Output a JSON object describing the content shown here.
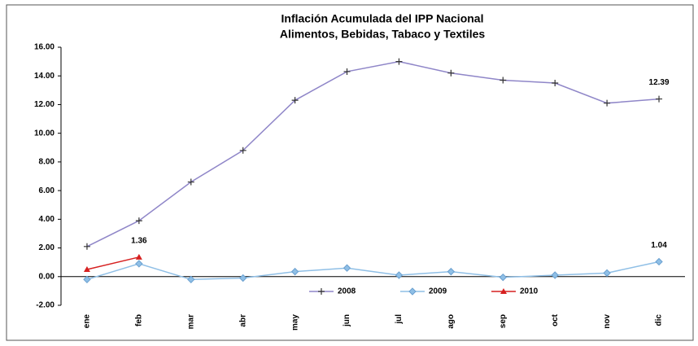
{
  "chart_data": {
    "type": "line",
    "title": "Inflación Acumulada del IPP Nacional",
    "subtitle": "Alimentos, Bebidas, Tabaco y Textiles",
    "categories": [
      "ene",
      "feb",
      "mar",
      "abr",
      "may",
      "jun",
      "jul",
      "ago",
      "sep",
      "oct",
      "nov",
      "dic"
    ],
    "series": [
      {
        "name": "2008",
        "color": "#8f86c8",
        "marker": "plus",
        "values": [
          2.1,
          3.9,
          6.6,
          8.8,
          12.3,
          14.3,
          15.0,
          14.2,
          13.7,
          13.5,
          12.1,
          12.39
        ],
        "value_labels": [
          null,
          null,
          null,
          null,
          null,
          null,
          null,
          null,
          null,
          null,
          null,
          "12.39"
        ]
      },
      {
        "name": "2009",
        "color": "#8fbfe6",
        "marker": "diamond",
        "values": [
          -0.2,
          0.9,
          -0.2,
          -0.1,
          0.35,
          0.6,
          0.1,
          0.35,
          -0.05,
          0.1,
          0.25,
          1.04
        ],
        "value_labels": [
          null,
          null,
          null,
          null,
          null,
          null,
          null,
          null,
          null,
          null,
          null,
          "1.04"
        ]
      },
      {
        "name": "2010",
        "color": "#d62020",
        "marker": "triangle",
        "values": [
          0.5,
          1.36,
          null,
          null,
          null,
          null,
          null,
          null,
          null,
          null,
          null,
          null
        ],
        "value_labels": [
          null,
          "1.36",
          null,
          null,
          null,
          null,
          null,
          null,
          null,
          null,
          null,
          null
        ]
      }
    ],
    "ylim": [
      -2,
      16
    ],
    "yticks": [
      {
        "value": -2,
        "label": "-2.00"
      },
      {
        "value": 0,
        "label": "0.00"
      },
      {
        "value": 2,
        "label": "2.00"
      },
      {
        "value": 4,
        "label": "4.00"
      },
      {
        "value": 6,
        "label": "6.00"
      },
      {
        "value": 8,
        "label": "8.00"
      },
      {
        "value": 10,
        "label": "10.00"
      },
      {
        "value": 12,
        "label": "12.00"
      },
      {
        "value": 14,
        "label": "14.00"
      },
      {
        "value": 16,
        "label": "16.00"
      }
    ],
    "legend": "bottom"
  }
}
